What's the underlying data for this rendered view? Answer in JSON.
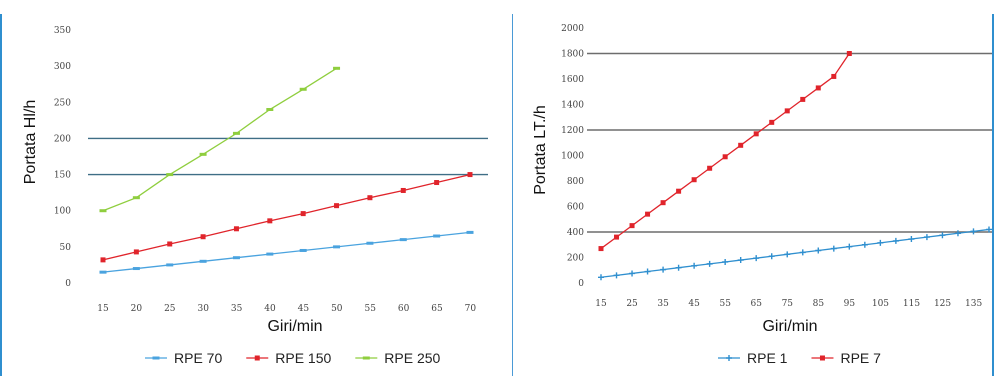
{
  "chart_data": [
    {
      "type": "line",
      "xlabel": "Giri/min",
      "ylabel": "Portata Hl/h",
      "categories": [
        "15",
        "20",
        "25",
        "30",
        "35",
        "40",
        "45",
        "50",
        "55",
        "60",
        "65",
        "70"
      ],
      "x": [
        15,
        20,
        25,
        30,
        35,
        40,
        45,
        50,
        55,
        60,
        65,
        70
      ],
      "ylim": [
        0,
        350
      ],
      "yticks": [
        {
          "value": 0,
          "label": "0"
        },
        {
          "value": 50,
          "label": "50"
        },
        {
          "value": 100,
          "label": "100"
        },
        {
          "value": 150,
          "label": "150"
        },
        {
          "value": 200,
          "label": "200"
        },
        {
          "value": 250,
          "label": "250"
        },
        {
          "value": 300,
          "label": "300"
        },
        {
          "value": 350,
          "label": "350"
        }
      ],
      "reference_lines": [
        150,
        200
      ],
      "legend_position": "bottom",
      "series": [
        {
          "name": "RPE 70",
          "color": "#4aa3df",
          "marker": "dash",
          "x": [
            15,
            20,
            25,
            30,
            35,
            40,
            45,
            50,
            55,
            60,
            65,
            70
          ],
          "values": [
            15,
            20,
            25,
            30,
            35,
            40,
            45,
            50,
            55,
            60,
            65,
            70
          ]
        },
        {
          "name": "RPE 150",
          "color": "#e0242b",
          "marker": "square",
          "x": [
            15,
            20,
            25,
            30,
            35,
            40,
            45,
            50,
            55,
            60,
            65,
            70
          ],
          "values": [
            32,
            43,
            54,
            64,
            75,
            86,
            96,
            107,
            118,
            128,
            139,
            150
          ]
        },
        {
          "name": "RPE 250",
          "color": "#8fce3e",
          "marker": "dash",
          "x": [
            15,
            20,
            25,
            30,
            35,
            40,
            45,
            50
          ],
          "values": [
            100,
            118,
            150,
            178,
            207,
            240,
            268,
            297
          ]
        }
      ]
    },
    {
      "type": "line",
      "xlabel": "Giri/min",
      "ylabel": "Portata LT./h",
      "categories": [
        "15",
        "25",
        "35",
        "45",
        "55",
        "65",
        "75",
        "85",
        "95",
        "105",
        "115",
        "125",
        "135"
      ],
      "ylim": [
        0,
        2000
      ],
      "yticks": [
        {
          "value": 0,
          "label": "0"
        },
        {
          "value": 200,
          "label": "200"
        },
        {
          "value": 400,
          "label": "400"
        },
        {
          "value": 600,
          "label": "600"
        },
        {
          "value": 800,
          "label": "800"
        },
        {
          "value": 1000,
          "label": "1000"
        },
        {
          "value": 1200,
          "label": "1200"
        },
        {
          "value": 1400,
          "label": "1400"
        },
        {
          "value": 1600,
          "label": "1600"
        },
        {
          "value": 1800,
          "label": "1800"
        },
        {
          "value": 2000,
          "label": "2000"
        }
      ],
      "reference_lines": [
        400,
        1200,
        1800
      ],
      "legend_position": "bottom",
      "series": [
        {
          "name": "RPE 1",
          "color": "#2f8fcf",
          "marker": "plus",
          "x": [
            15,
            20,
            25,
            30,
            35,
            40,
            45,
            50,
            55,
            60,
            65,
            70,
            75,
            80,
            85,
            90,
            95,
            100,
            105,
            110,
            115,
            120,
            125,
            130,
            135,
            140
          ],
          "values": [
            45,
            60,
            75,
            90,
            105,
            120,
            135,
            150,
            165,
            180,
            195,
            210,
            225,
            240,
            255,
            270,
            285,
            300,
            315,
            330,
            345,
            360,
            375,
            390,
            405,
            420
          ]
        },
        {
          "name": "RPE 7",
          "color": "#e0242b",
          "marker": "square",
          "x": [
            15,
            20,
            25,
            30,
            35,
            40,
            45,
            50,
            55,
            60,
            65,
            70,
            75,
            80,
            85,
            90,
            95
          ],
          "values": [
            270,
            360,
            450,
            540,
            630,
            720,
            810,
            900,
            990,
            1080,
            1170,
            1260,
            1350,
            1440,
            1530,
            1620,
            1800
          ]
        }
      ]
    }
  ]
}
